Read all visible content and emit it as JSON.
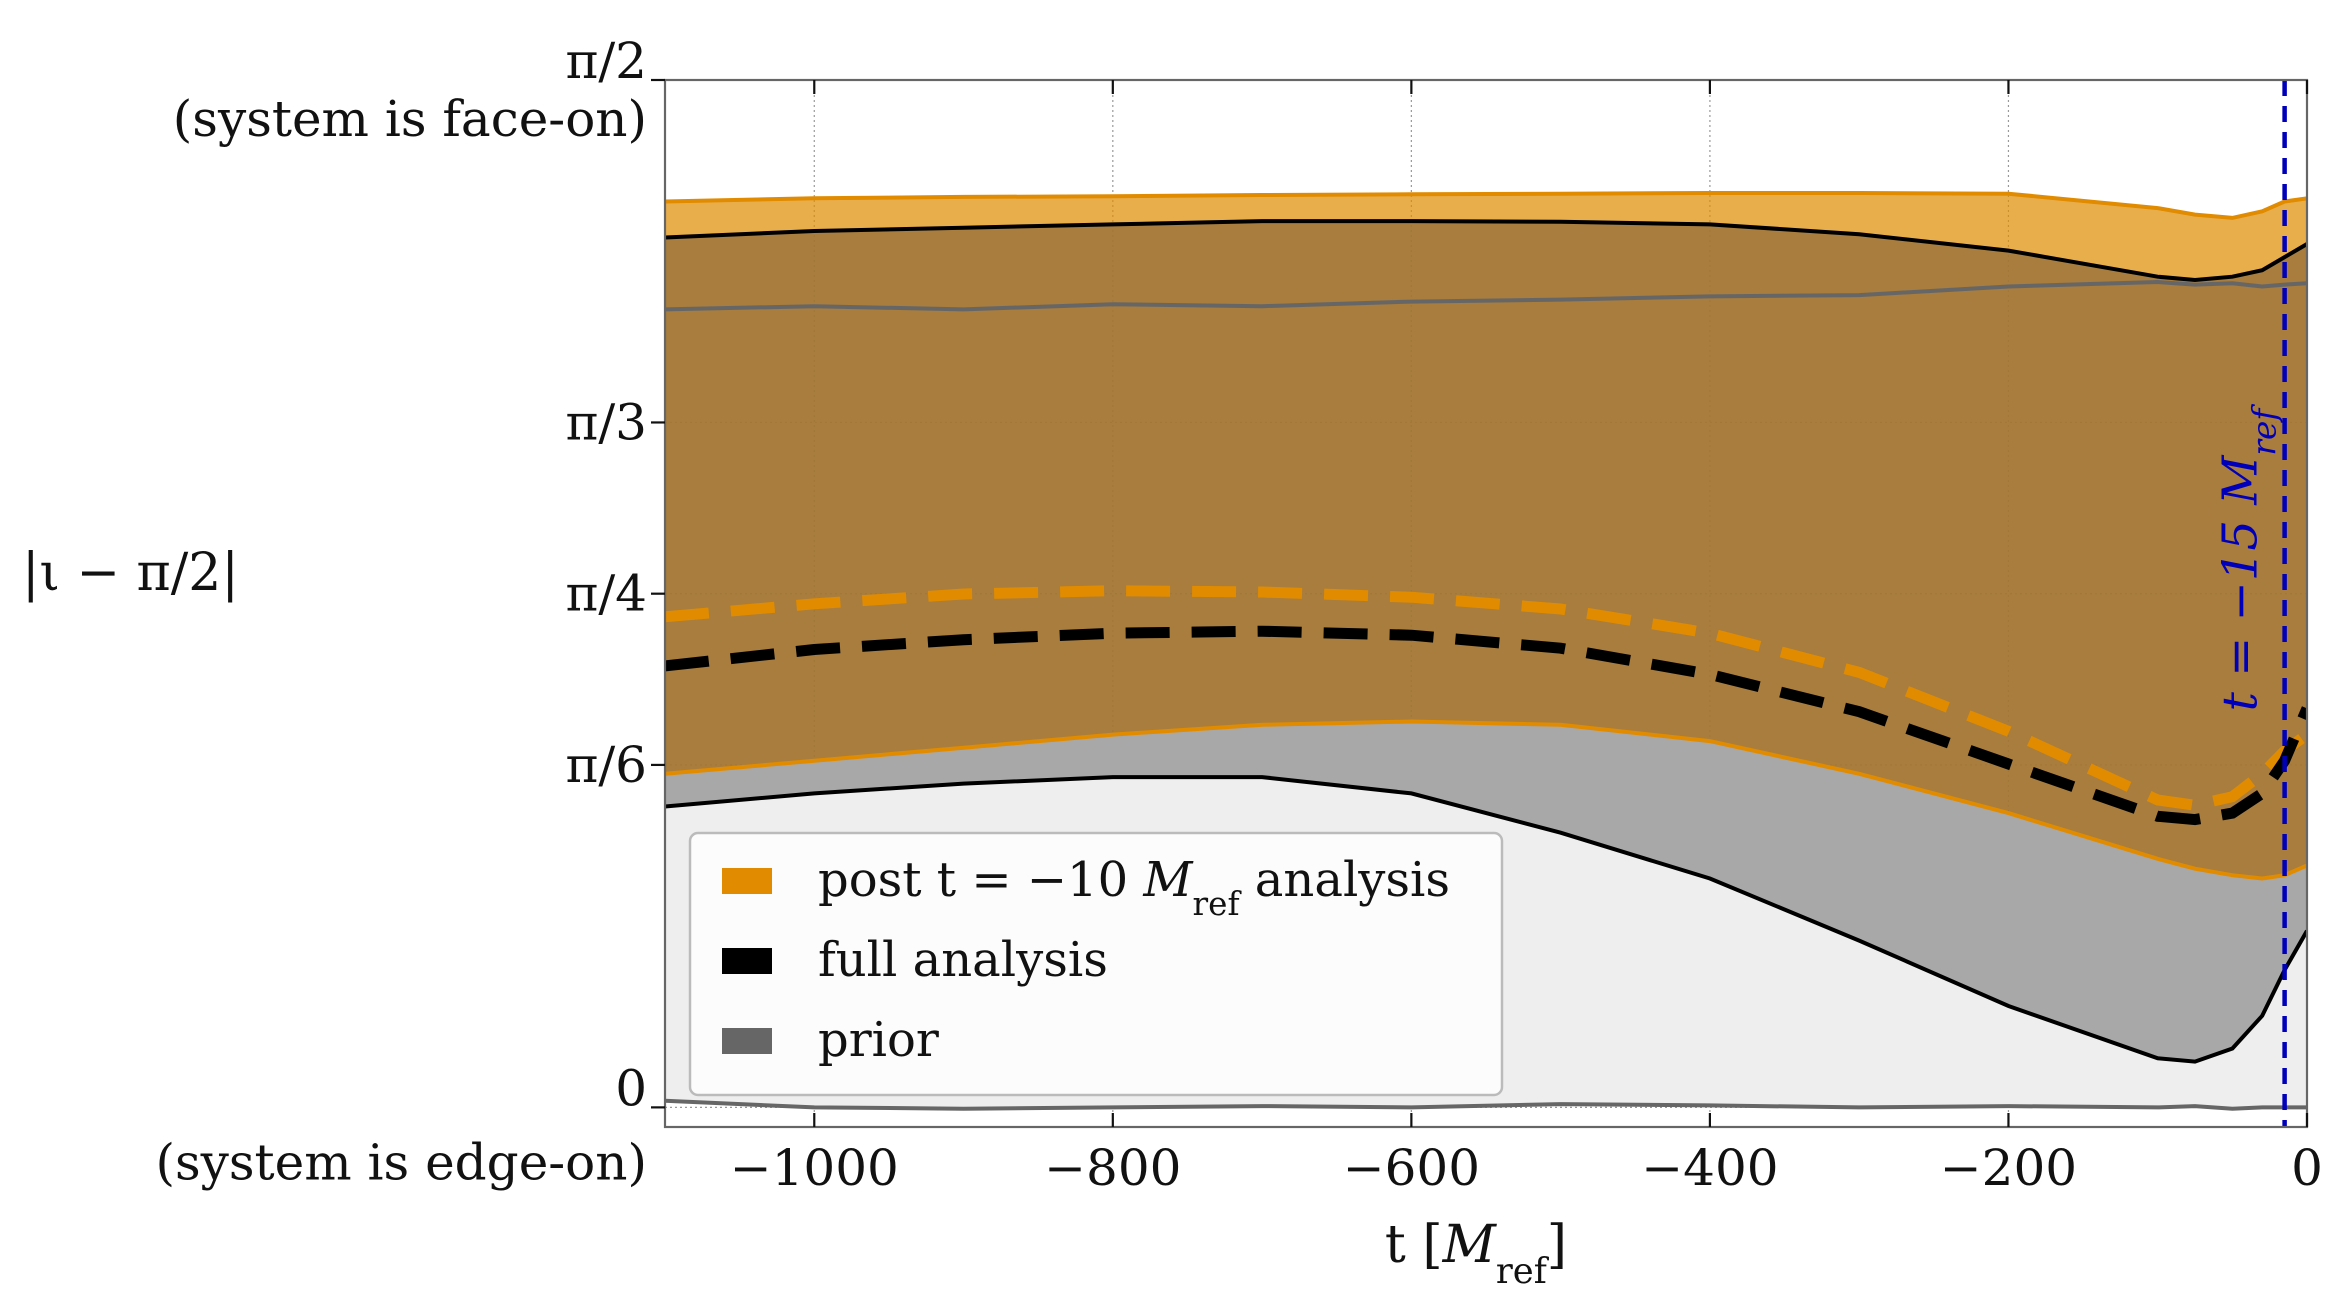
{
  "chart_data": {
    "type": "area",
    "xlabel": "t [M_ref]",
    "ylabel": "|ι − π/2|",
    "x_unit": "M_ref",
    "xlim": [
      -1100,
      0
    ],
    "ylim": [
      -0.03,
      1.5708
    ],
    "grid": true,
    "legend_position": "lower-left",
    "x_ticks": [
      {
        "value": -1000,
        "label": "−1000"
      },
      {
        "value": -800,
        "label": "−800"
      },
      {
        "value": -600,
        "label": "−600"
      },
      {
        "value": -400,
        "label": "−400"
      },
      {
        "value": -200,
        "label": "−200"
      },
      {
        "value": 0,
        "label": "0"
      }
    ],
    "y_ticks": [
      {
        "value": 0,
        "label": "0",
        "sublabel": "(system is edge-on)"
      },
      {
        "value": 0.5236,
        "label": "π/6",
        "sublabel": ""
      },
      {
        "value": 0.7854,
        "label": "π/4",
        "sublabel": ""
      },
      {
        "value": 1.0472,
        "label": "π/3",
        "sublabel": ""
      },
      {
        "value": 1.5708,
        "label": "π/2",
        "sublabel": "(system is face-on)"
      }
    ],
    "x": [
      -1100,
      -1000,
      -900,
      -800,
      -700,
      -600,
      -500,
      -400,
      -300,
      -200,
      -100,
      -75,
      -50,
      -30,
      -15,
      0
    ],
    "series": [
      {
        "name": "post t = −10 M_ref analysis",
        "color": "#E08B00",
        "fill_opacity": 0.7,
        "lower": [
          0.51,
          0.53,
          0.55,
          0.57,
          0.585,
          0.59,
          0.585,
          0.56,
          0.51,
          0.45,
          0.38,
          0.365,
          0.355,
          0.35,
          0.355,
          0.37
        ],
        "upper": [
          1.385,
          1.39,
          1.392,
          1.393,
          1.395,
          1.396,
          1.397,
          1.398,
          1.398,
          1.397,
          1.375,
          1.365,
          1.36,
          1.37,
          1.385,
          1.39
        ],
        "median": [
          0.75,
          0.77,
          0.785,
          0.79,
          0.788,
          0.78,
          0.762,
          0.725,
          0.665,
          0.575,
          0.47,
          0.462,
          0.475,
          0.51,
          0.545,
          0.57
        ]
      },
      {
        "name": "full analysis",
        "color": "#000000",
        "fill_opacity": 0.0,
        "lower": [
          0.46,
          0.48,
          0.495,
          0.505,
          0.505,
          0.48,
          0.42,
          0.35,
          0.255,
          0.155,
          0.075,
          0.07,
          0.09,
          0.14,
          0.21,
          0.27
        ],
        "upper": [
          1.33,
          1.34,
          1.345,
          1.35,
          1.355,
          1.355,
          1.354,
          1.35,
          1.335,
          1.31,
          1.27,
          1.265,
          1.27,
          1.28,
          1.3,
          1.32
        ],
        "median": [
          0.675,
          0.7,
          0.715,
          0.725,
          0.728,
          0.722,
          0.702,
          0.662,
          0.605,
          0.525,
          0.445,
          0.44,
          0.45,
          0.48,
          0.53,
          0.61
        ]
      },
      {
        "name": "prior",
        "color": "#666666",
        "fill_opacity": 0.55,
        "lower": [
          0.01,
          0.0,
          -0.002,
          0.0,
          0.002,
          0.0,
          0.005,
          0.003,
          0.0,
          0.002,
          0.0,
          0.002,
          -0.002,
          0.0,
          0.0,
          0.0
        ],
        "upper": [
          1.22,
          1.225,
          1.22,
          1.228,
          1.225,
          1.232,
          1.235,
          1.24,
          1.242,
          1.255,
          1.262,
          1.258,
          1.26,
          1.255,
          1.258,
          1.26
        ]
      }
    ],
    "annotations": [
      {
        "type": "vline",
        "x": -15,
        "color": "#0000BB",
        "style": "dashed",
        "label": "t = −15 M_ref"
      }
    ]
  }
}
